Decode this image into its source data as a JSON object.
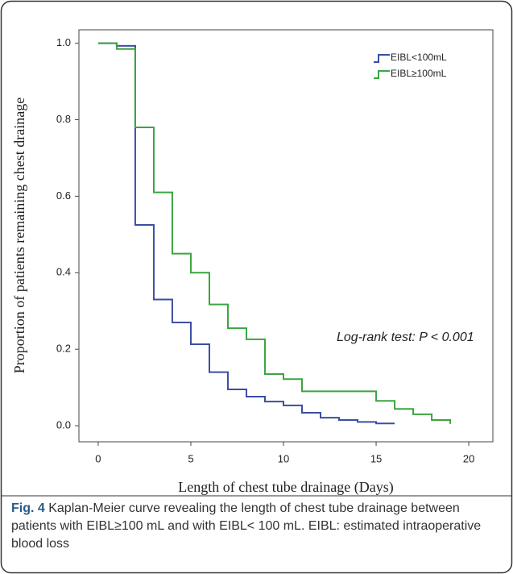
{
  "chart_data": {
    "type": "step",
    "xlabel": "Length of chest tube drainage (Days)",
    "ylabel": "Proportion of patients remaining chest drainage",
    "annotation": "Log-rank test: P < 0.001",
    "xlim": [
      -1.04,
      21.3
    ],
    "ylim": [
      -0.042,
      1.035
    ],
    "xticks": [
      0,
      5,
      10,
      15,
      20
    ],
    "yticks": [
      {
        "value": 0,
        "label": "0.0"
      },
      0.2,
      0.4,
      0.6,
      0.8,
      {
        "value": 1,
        "label": "1.0"
      }
    ],
    "series": [
      {
        "name": "EIBL<100mL",
        "color": "#3b4ea3",
        "x": [
          0,
          1,
          2,
          3,
          4,
          5,
          6,
          7,
          8,
          9,
          10,
          11,
          12,
          13,
          14,
          15,
          16
        ],
        "values": [
          1.0,
          0.993,
          0.525,
          0.33,
          0.27,
          0.213,
          0.14,
          0.095,
          0.076,
          0.063,
          0.053,
          0.034,
          0.021,
          0.015,
          0.01,
          0.006,
          0.006
        ]
      },
      {
        "name": "EIBL≥100mL",
        "color": "#3aa540",
        "x": [
          0,
          1,
          2,
          3,
          4,
          5,
          6,
          7,
          8,
          9,
          10,
          11,
          15,
          16,
          17,
          18,
          19
        ],
        "values": [
          1.0,
          0.985,
          0.78,
          0.61,
          0.45,
          0.4,
          0.317,
          0.255,
          0.226,
          0.135,
          0.122,
          0.09,
          0.065,
          0.044,
          0.03,
          0.015,
          0.005
        ]
      }
    ]
  },
  "caption": {
    "label": "Fig. 4",
    "text": "Kaplan-Meier curve revealing the length of chest tube drainage between patients with EIBL≥100 mL and with EIBL< 100 mL. EIBL: estimated intraoperative blood loss"
  }
}
